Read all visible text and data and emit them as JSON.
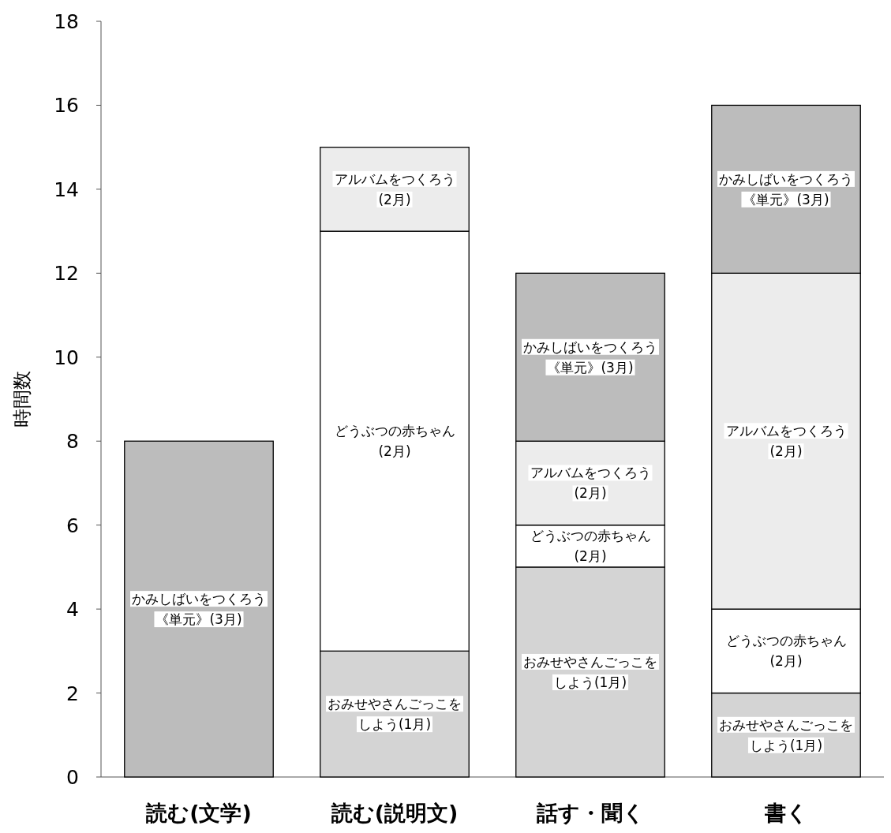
{
  "chart_data": {
    "type": "bar",
    "stacked": true,
    "ylabel": "時間数",
    "categories": [
      "読む(文学)",
      "読む(説明文)",
      "話す・聞く",
      "書く"
    ],
    "ylim": [
      0,
      18
    ],
    "yticks": [
      0,
      2,
      4,
      6,
      8,
      10,
      12,
      14,
      16,
      18
    ],
    "grid": false,
    "legend": false,
    "series": [
      {
        "name": "おみせやさんごっこをしよう(1月)",
        "color": "#d4d4d4",
        "values": [
          0,
          3,
          5,
          2
        ]
      },
      {
        "name": "どうぶつの赤ちゃん(2月)",
        "color": "#ffffff",
        "values": [
          0,
          10,
          1,
          2
        ]
      },
      {
        "name": "アルバムをつくろう(2月)",
        "color": "#ececec",
        "values": [
          0,
          2,
          2,
          8
        ]
      },
      {
        "name": "かみしばいをつくろう《単元》(3月)",
        "color": "#bcbcbc",
        "values": [
          8,
          0,
          4,
          4
        ]
      }
    ]
  }
}
